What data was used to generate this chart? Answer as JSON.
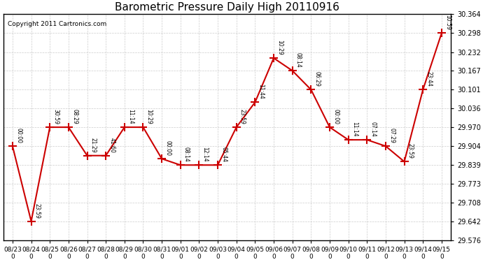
{
  "title": "Barometric Pressure Daily High 20110916",
  "copyright": "Copyright 2011 Cartronics.com",
  "background_color": "#ffffff",
  "line_color": "#cc0000",
  "marker_color": "#cc0000",
  "grid_color": "#cccccc",
  "dates": [
    "08/23\n0",
    "08/24\n0",
    "08/25\n0",
    "08/26\n0",
    "08/27\n0",
    "08/28\n0",
    "08/29\n0",
    "08/30\n0",
    "08/31\n0",
    "09/01\n0",
    "09/02\n0",
    "09/03\n0",
    "09/04\n0",
    "09/05\n0",
    "09/06\n0",
    "09/07\n0",
    "09/08\n0",
    "09/09\n0",
    "09/10\n0",
    "09/11\n0",
    "09/12\n0",
    "09/13\n0",
    "09/14\n0",
    "09/15\n0"
  ],
  "values": [
    29.904,
    29.642,
    29.97,
    29.97,
    29.871,
    29.871,
    29.97,
    29.97,
    29.86,
    29.838,
    29.838,
    29.838,
    29.97,
    30.057,
    30.211,
    30.167,
    30.101,
    29.97,
    29.926,
    29.926,
    29.904,
    29.85,
    30.101,
    30.298
  ],
  "time_labels": [
    "00:00",
    "23:59",
    "30:59",
    "08:29",
    "21:29",
    "41:60",
    "11:14",
    "10:29",
    "00:00",
    "08:14",
    "12:14",
    "05:44",
    "23:59",
    "11:44",
    "10:29",
    "08:14",
    "06:29",
    "00:00",
    "11:14",
    "07:14",
    "07:29",
    "23:59",
    "23:44",
    "10:59"
  ],
  "ylim_min": 29.576,
  "ylim_max": 30.364,
  "ytick_values": [
    29.576,
    29.642,
    29.708,
    29.773,
    29.839,
    29.904,
    29.97,
    30.036,
    30.101,
    30.167,
    30.232,
    30.298,
    30.364
  ]
}
